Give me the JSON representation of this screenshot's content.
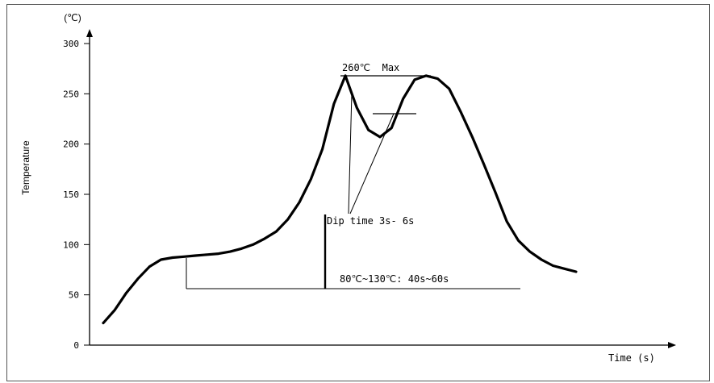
{
  "chart_data": {
    "type": "line",
    "title": "",
    "xlabel": "Time (s)",
    "ylabel": "Temperature",
    "y_unit": "(℃)",
    "ylim": [
      0,
      300
    ],
    "y_ticks": [
      {
        "label": "0",
        "value": 0
      },
      {
        "label": "50",
        "value": 50
      },
      {
        "label": "100",
        "value": 100
      },
      {
        "label": "150",
        "value": 150
      },
      {
        "label": "200",
        "value": 200
      },
      {
        "label": "250",
        "value": 250
      },
      {
        "label": "300",
        "value": 300
      }
    ],
    "x_ticks": [],
    "grid": false,
    "series": [
      {
        "values_y": [
          22,
          35,
          52,
          66,
          78,
          85,
          87,
          88,
          89,
          90,
          91,
          93,
          96,
          100,
          106,
          113,
          125,
          142,
          165,
          195,
          240,
          268,
          236,
          214,
          207,
          216,
          245,
          264,
          268,
          265,
          255,
          232,
          207,
          180,
          152,
          123,
          104,
          93,
          85,
          79,
          76,
          73
        ]
      }
    ],
    "annotations": {
      "max_label": "260℃  Max",
      "dip_label": "Dip time 3s- 6s",
      "preheat_label": "80℃~130℃: 40s~60s"
    }
  },
  "style": {
    "line_color": "#000000",
    "axis_color": "#000000",
    "background": "#ffffff"
  }
}
